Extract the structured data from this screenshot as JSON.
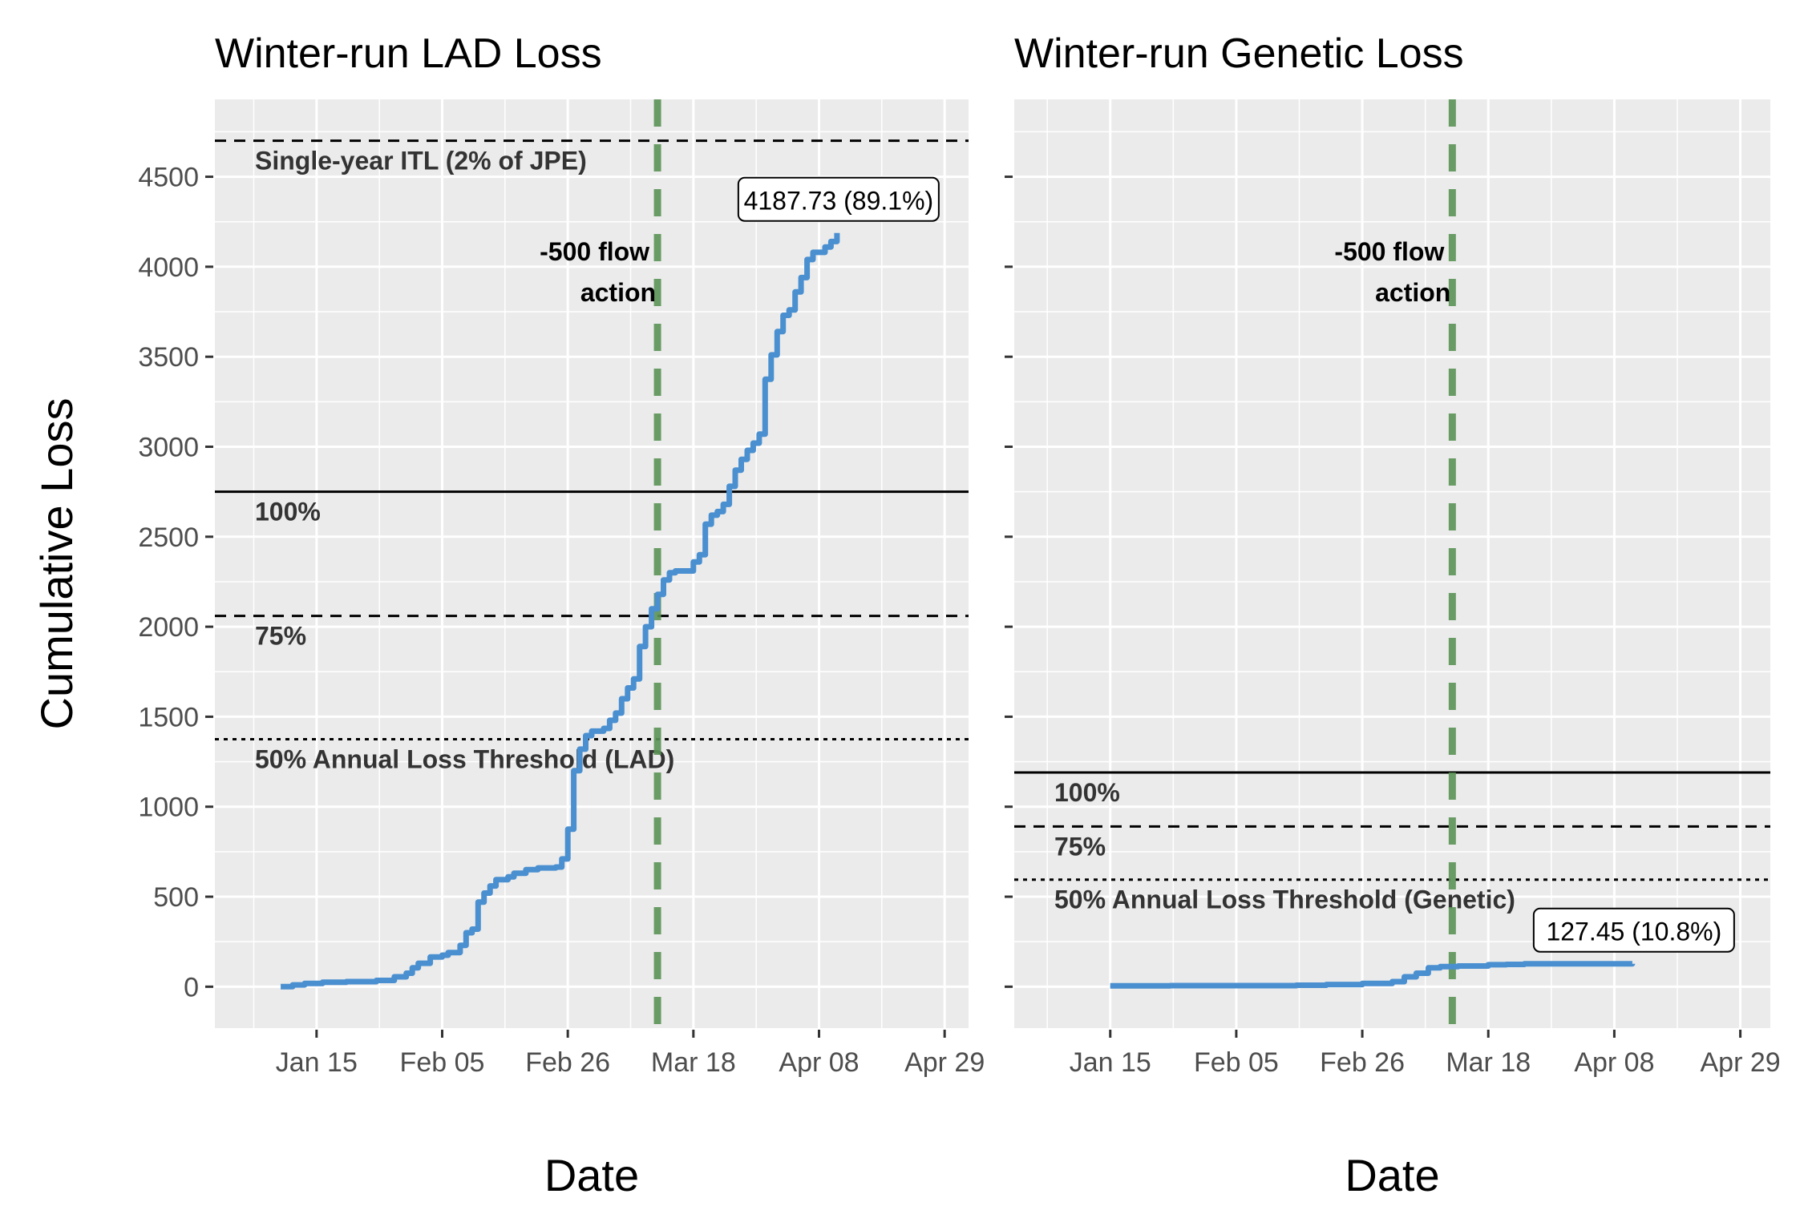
{
  "chart_data": {
    "type": "line",
    "ylabel": "Cumulative Loss",
    "xlabel": "Date",
    "ylim": [
      -230,
      4930
    ],
    "yticks": [
      0,
      500,
      1000,
      1500,
      2000,
      2500,
      3000,
      3500,
      4000,
      4500
    ],
    "xticks": [
      "Jan 15",
      "Feb 05",
      "Feb 26",
      "Mar 18",
      "Apr 08",
      "Apr 29"
    ],
    "xlim": [
      "2024-12-26",
      "2024-05-01"
    ],
    "panels": [
      {
        "title": "Winter-run LAD Loss",
        "xlim": [
          "2024-12-25",
          "2024-05-01"
        ],
        "series": [
          {
            "color": "#4a8fd0",
            "points": [
              [
                "2024-01-09",
                0
              ],
              [
                "2024-01-11",
                10
              ],
              [
                "2024-01-13",
                18
              ],
              [
                "2024-01-16",
                25
              ],
              [
                "2024-01-20",
                28
              ],
              [
                "2024-01-25",
                35
              ],
              [
                "2024-01-28",
                55
              ],
              [
                "2024-01-30",
                75
              ],
              [
                "2024-01-31",
                105
              ],
              [
                "2024-02-01",
                130
              ],
              [
                "2024-02-03",
                165
              ],
              [
                "2024-02-05",
                175
              ],
              [
                "2024-02-06",
                190
              ],
              [
                "2024-02-08",
                230
              ],
              [
                "2024-02-09",
                300
              ],
              [
                "2024-02-10",
                320
              ],
              [
                "2024-02-11",
                470
              ],
              [
                "2024-02-12",
                520
              ],
              [
                "2024-02-13",
                560
              ],
              [
                "2024-02-14",
                595
              ],
              [
                "2024-02-16",
                610
              ],
              [
                "2024-02-17",
                630
              ],
              [
                "2024-02-19",
                650
              ],
              [
                "2024-02-21",
                660
              ],
              [
                "2024-02-24",
                665
              ],
              [
                "2024-02-25",
                710
              ],
              [
                "2024-02-26",
                875
              ],
              [
                "2024-02-27",
                1200
              ],
              [
                "2024-02-28",
                1320
              ],
              [
                "2024-02-29",
                1395
              ],
              [
                "2024-03-01",
                1420
              ],
              [
                "2024-03-03",
                1435
              ],
              [
                "2024-03-04",
                1480
              ],
              [
                "2024-03-05",
                1520
              ],
              [
                "2024-03-06",
                1600
              ],
              [
                "2024-03-07",
                1660
              ],
              [
                "2024-03-08",
                1710
              ],
              [
                "2024-03-09",
                1890
              ],
              [
                "2024-03-10",
                2000
              ],
              [
                "2024-03-11",
                2100
              ],
              [
                "2024-03-12",
                2180
              ],
              [
                "2024-03-13",
                2260
              ],
              [
                "2024-03-14",
                2300
              ],
              [
                "2024-03-15",
                2310
              ],
              [
                "2024-03-18",
                2360
              ],
              [
                "2024-03-19",
                2400
              ],
              [
                "2024-03-20",
                2570
              ],
              [
                "2024-03-21",
                2620
              ],
              [
                "2024-03-22",
                2640
              ],
              [
                "2024-03-23",
                2680
              ],
              [
                "2024-03-24",
                2780
              ],
              [
                "2024-03-25",
                2870
              ],
              [
                "2024-03-26",
                2930
              ],
              [
                "2024-03-27",
                2980
              ],
              [
                "2024-03-28",
                3020
              ],
              [
                "2024-03-29",
                3070
              ],
              [
                "2024-03-30",
                3375
              ],
              [
                "2024-03-31",
                3510
              ],
              [
                "2024-04-01",
                3640
              ],
              [
                "2024-04-02",
                3730
              ],
              [
                "2024-04-03",
                3760
              ],
              [
                "2024-04-04",
                3860
              ],
              [
                "2024-04-05",
                3940
              ],
              [
                "2024-04-06",
                4040
              ],
              [
                "2024-04-07",
                4080
              ],
              [
                "2024-04-09",
                4110
              ],
              [
                "2024-04-10",
                4140
              ],
              [
                "2024-04-11",
                4187.73
              ]
            ]
          }
        ],
        "hlines": [
          {
            "y": 4700,
            "style": "dashed",
            "label": "Single-year ITL (2% of JPE)"
          },
          {
            "y": 2750,
            "style": "solid",
            "label": "100%"
          },
          {
            "y": 2060,
            "style": "dashed",
            "label": "75%"
          },
          {
            "y": 1375,
            "style": "dotted",
            "label": "50% Annual Loss Threshold (LAD)"
          }
        ],
        "vline": {
          "x": "2024-03-12",
          "color": "#5b9357",
          "label_line1": "-500 flow",
          "label_line2": "action"
        },
        "end_label": {
          "x": "2024-04-11",
          "y": 4187.73,
          "text": "4187.73 (89.1%)"
        }
      },
      {
        "title": "Winter-run Genetic Loss",
        "xlim": [
          "2024-12-26",
          "2024-05-01"
        ],
        "series": [
          {
            "color": "#4a8fd0",
            "points": [
              [
                "2024-01-15",
                5
              ],
              [
                "2024-01-25",
                6
              ],
              [
                "2024-02-05",
                6
              ],
              [
                "2024-02-15",
                8
              ],
              [
                "2024-02-20",
                12
              ],
              [
                "2024-02-26",
                18
              ],
              [
                "2024-03-02",
                28
              ],
              [
                "2024-03-04",
                55
              ],
              [
                "2024-03-06",
                75
              ],
              [
                "2024-03-08",
                105
              ],
              [
                "2024-03-10",
                112
              ],
              [
                "2024-03-13",
                115
              ],
              [
                "2024-03-18",
                122
              ],
              [
                "2024-03-21",
                124
              ],
              [
                "2024-03-24",
                127
              ],
              [
                "2024-04-11",
                127.45
              ]
            ]
          }
        ],
        "hlines": [
          {
            "y": 1190,
            "style": "solid",
            "label": "100%"
          },
          {
            "y": 890,
            "style": "dashed",
            "label": "75%"
          },
          {
            "y": 595,
            "style": "dotted",
            "label": "50% Annual Loss Threshold (Genetic)"
          }
        ],
        "vline": {
          "x": "2024-03-12",
          "color": "#5b9357",
          "label_line1": "-500 flow",
          "label_line2": "action"
        },
        "end_label": {
          "x": "2024-04-11",
          "y": 127.45,
          "text": "127.45 (10.8%)"
        }
      }
    ]
  }
}
